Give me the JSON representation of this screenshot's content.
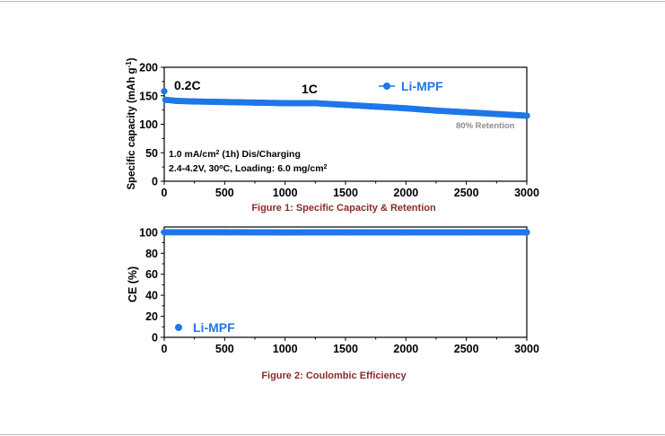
{
  "chart_data": [
    {
      "type": "scatter",
      "title": "",
      "xlabel": "",
      "ylabel": "Specific capacity (mAh g",
      "ylabel_sup": "-1",
      "ylabel_end": ")",
      "xlim": [
        0,
        3000
      ],
      "ylim": [
        0,
        200
      ],
      "x_ticks": [
        0,
        500,
        1000,
        1500,
        2000,
        2500,
        3000
      ],
      "y_ticks": [
        0,
        50,
        100,
        150,
        200
      ],
      "x_tick_labels": [
        "0",
        "500",
        "1000",
        "1500",
        "2000",
        "2500",
        "3000"
      ],
      "y_tick_labels": [
        "0",
        "50",
        "100",
        "150",
        "200"
      ],
      "series": [
        {
          "name": "Li-MPF",
          "color": "#1f77e8",
          "points": [
            [
              0,
              158
            ],
            [
              10,
              143
            ],
            [
              100,
              141
            ],
            [
              250,
              140
            ],
            [
              500,
              139
            ],
            [
              750,
              138
            ],
            [
              1000,
              137
            ],
            [
              1250,
              137
            ],
            [
              1500,
              134
            ],
            [
              1750,
              131
            ],
            [
              2000,
              128
            ],
            [
              2250,
              124
            ],
            [
              2500,
              121
            ],
            [
              2750,
              118
            ],
            [
              3000,
              115
            ]
          ]
        }
      ],
      "legend": {
        "label": "Li-MPF",
        "position": "top-right"
      },
      "annotations": {
        "rate_initial": "0.2C",
        "rate_main": "1C",
        "condition_1_pre": "1.0 mA/cm",
        "condition_1_sup": "2",
        "condition_1_post": " (1h) Dis/Charging",
        "condition_2_pre": "2.4-4.2V, 30",
        "condition_2_sup": "o",
        "condition_2_mid": "C, Loading: 6.0 mg/cm",
        "condition_2_sup2": "2",
        "retention": "80% Retention"
      },
      "caption": "Figure 1: Specific Capacity & Retention"
    },
    {
      "type": "scatter",
      "title": "",
      "xlabel": "",
      "ylabel": "CE (%)",
      "xlim": [
        0,
        3000
      ],
      "ylim": [
        0,
        105
      ],
      "x_ticks": [
        0,
        500,
        1000,
        1500,
        2000,
        2500,
        3000
      ],
      "y_ticks": [
        0,
        20,
        40,
        60,
        80,
        100
      ],
      "x_tick_labels": [
        "0",
        "500",
        "1000",
        "1500",
        "2000",
        "2500",
        "3000"
      ],
      "y_tick_labels": [
        "0",
        "20",
        "40",
        "60",
        "80",
        "100"
      ],
      "series": [
        {
          "name": "Li-MPF",
          "color": "#1f77e8",
          "points": [
            [
              0,
              100
            ],
            [
              500,
              100
            ],
            [
              1000,
              99.8
            ],
            [
              1500,
              99.9
            ],
            [
              2000,
              99.9
            ],
            [
              2500,
              99.9
            ],
            [
              3000,
              99.9
            ]
          ]
        }
      ],
      "legend": {
        "label": "Li-MPF",
        "position": "bottom-left"
      },
      "caption": "Figure 2: Coulombic Efficiency"
    }
  ]
}
